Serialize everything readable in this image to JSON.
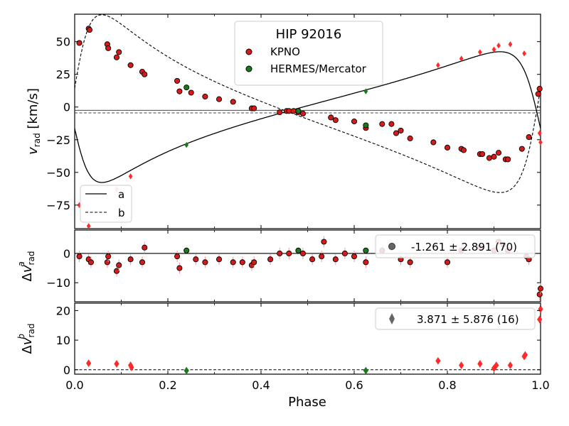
{
  "chart_data": {
    "type": "scatter",
    "title": "HIP 92016",
    "xlabel": "Phase",
    "xlim": [
      0.0,
      1.0
    ],
    "xticks": [
      "0.0",
      "0.2",
      "0.4",
      "0.6",
      "0.8",
      "1.0"
    ],
    "colors": {
      "kpno_a": "#d61a1a",
      "kpno_b": "#ff2a2a",
      "hermes": "#1a7a1a",
      "summary": "#666666"
    },
    "panels": [
      {
        "name": "rv",
        "ylabel": "v_rad [km/s]",
        "ylim": [
          -93,
          71
        ],
        "yticks": [
          50,
          25,
          0,
          -25,
          -50,
          -75
        ],
        "ytick_labels": [
          "50",
          "25",
          "0",
          "−25",
          "−50",
          "−75"
        ],
        "gamma_a": -2.5,
        "gamma_b": -4.5,
        "legend_top": {
          "title": "HIP 92016",
          "entries": [
            "KPNO",
            "HERMES/Mercator"
          ]
        },
        "legend_lines": [
          "a",
          "b"
        ],
        "model_a": {
          "e": 0.6,
          "omega_deg": 100,
          "K": 50,
          "phase_peri": 0.0,
          "gamma": -2.5
        },
        "model_b": {
          "e": 0.6,
          "omega_deg": 280,
          "K": 68,
          "phase_peri": 0.0,
          "gamma": -4.5
        },
        "series": [
          {
            "name": "KPNO a",
            "component": "a",
            "x": [
              0.01,
              0.03,
              0.032,
              0.07,
              0.072,
              0.09,
              0.095,
              0.12,
              0.145,
              0.15,
              0.22,
              0.225,
              0.25,
              0.28,
              0.31,
              0.34,
              0.38,
              0.385,
              0.44,
              0.455,
              0.46,
              0.47,
              0.48,
              0.49,
              0.55,
              0.56,
              0.6,
              0.625,
              0.66,
              0.68,
              0.69,
              0.7,
              0.72,
              0.77,
              0.8,
              0.83,
              0.835,
              0.87,
              0.875,
              0.89,
              0.9,
              0.91,
              0.925,
              0.93,
              0.96,
              0.975,
              0.995,
              0.998
            ],
            "y": [
              49,
              60,
              59,
              48,
              45,
              38,
              42,
              32,
              27,
              25,
              20,
              12,
              11,
              8,
              6,
              4,
              -1,
              -1,
              -4,
              -3,
              -3,
              -3,
              -4,
              -5,
              -8,
              -10,
              -11,
              -16,
              -13,
              -13,
              -20,
              -18,
              -24,
              -27,
              -31,
              -32,
              -33,
              -36,
              -36,
              -39,
              -38,
              -35,
              -40,
              -40,
              -32,
              -23,
              10,
              14
            ]
          },
          {
            "name": "KPNO b",
            "component": "b",
            "x": [
              0.01,
              0.03,
              0.09,
              0.12,
              0.78,
              0.83,
              0.87,
              0.9,
              0.91,
              0.935,
              0.965,
              0.998,
              1.0
            ],
            "y": [
              -75,
              -91,
              -63,
              -53,
              32,
              37,
              42,
              44,
              47,
              48,
              41,
              -20,
              -27
            ]
          },
          {
            "name": "HERMES/Mercator a",
            "component": "a",
            "x": [
              0.24,
              0.48,
              0.625
            ],
            "y": [
              15,
              -3,
              -14
            ]
          },
          {
            "name": "HERMES/Mercator b",
            "component": "b",
            "x": [
              0.24,
              0.625
            ],
            "y": [
              -29,
              12
            ]
          }
        ]
      },
      {
        "name": "resid_a",
        "ylabel": "Δv_rad^a",
        "ylim": [
          -16.5,
          8
        ],
        "yticks": [
          0,
          -10
        ],
        "ytick_labels": [
          "0",
          "−10"
        ],
        "summary": "-1.261 ± 2.891 (70)",
        "kpno": {
          "x": [
            0.01,
            0.03,
            0.035,
            0.07,
            0.072,
            0.09,
            0.095,
            0.12,
            0.145,
            0.15,
            0.22,
            0.225,
            0.26,
            0.28,
            0.31,
            0.34,
            0.36,
            0.38,
            0.385,
            0.42,
            0.44,
            0.46,
            0.49,
            0.51,
            0.53,
            0.535,
            0.56,
            0.58,
            0.6,
            0.625,
            0.66,
            0.68,
            0.7,
            0.72,
            0.8,
            0.83,
            0.87,
            0.9,
            0.91,
            0.92,
            0.93,
            0.97,
            0.975,
            0.998,
            1.0
          ],
          "y": [
            -1,
            -2,
            -3,
            -3,
            -1,
            -6,
            -4,
            -2,
            -3,
            2,
            -1,
            -5,
            -2,
            -3,
            -2,
            -3,
            -3,
            -4,
            -3,
            -2,
            0,
            0,
            0,
            -2,
            -1,
            4,
            -2,
            0,
            -1,
            -3,
            1,
            2,
            -2,
            -3,
            -3,
            1,
            2,
            1,
            4,
            3,
            1,
            -1,
            -2,
            -14,
            -12
          ]
        },
        "hermes": {
          "x": [
            0.24,
            0.48,
            0.625
          ],
          "y": [
            1,
            1,
            1
          ]
        }
      },
      {
        "name": "resid_b",
        "ylabel": "Δv_rad^b",
        "ylim": [
          -1.5,
          22.5
        ],
        "yticks": [
          20,
          10,
          0
        ],
        "ytick_labels": [
          "20",
          "10",
          "0"
        ],
        "summary": "3.871 ± 5.876 (16)",
        "kpno": {
          "x": [
            0.03,
            0.09,
            0.12,
            0.122,
            0.78,
            0.83,
            0.87,
            0.9,
            0.905,
            0.935,
            0.965,
            0.967,
            0.998,
            1.0
          ],
          "y": [
            2.2,
            2,
            1.5,
            0.8,
            3,
            1.5,
            2,
            0.5,
            1.5,
            1.5,
            4.5,
            5,
            17,
            20.5
          ]
        },
        "hermes": {
          "x": [
            0.24,
            0.625
          ],
          "y": [
            -0.3,
            -0.3
          ]
        }
      }
    ]
  }
}
